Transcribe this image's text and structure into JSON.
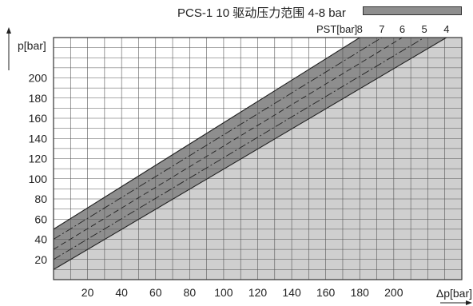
{
  "chart_data": {
    "type": "line",
    "title": "PCS-1 10 驱动压力范围 4-8 bar",
    "ylabel": "p[bar]",
    "xlabel": "Δp[bar]",
    "xlim": [
      0,
      240
    ],
    "ylim": [
      0,
      240
    ],
    "x_ticks": [
      20,
      40,
      60,
      80,
      100,
      120,
      140,
      160,
      180,
      200
    ],
    "y_ticks": [
      20,
      40,
      60,
      80,
      100,
      120,
      140,
      160,
      180,
      200
    ],
    "grid": true,
    "pst_label": "PST[bar]",
    "series": [
      {
        "name": "8",
        "x": [
          0,
          180
        ],
        "y": [
          50,
          240
        ]
      },
      {
        "name": "7",
        "x": [
          0,
          193
        ],
        "y": [
          40,
          240
        ]
      },
      {
        "name": "6",
        "x": [
          0,
          205
        ],
        "y": [
          30,
          240
        ]
      },
      {
        "name": "5",
        "x": [
          0,
          218
        ],
        "y": [
          20,
          240
        ]
      },
      {
        "name": "4",
        "x": [
          0,
          231
        ],
        "y": [
          10,
          240
        ]
      }
    ],
    "colors": {
      "band": "#8e8e8e",
      "below": "#cfcfcf",
      "line": "#222222"
    }
  }
}
